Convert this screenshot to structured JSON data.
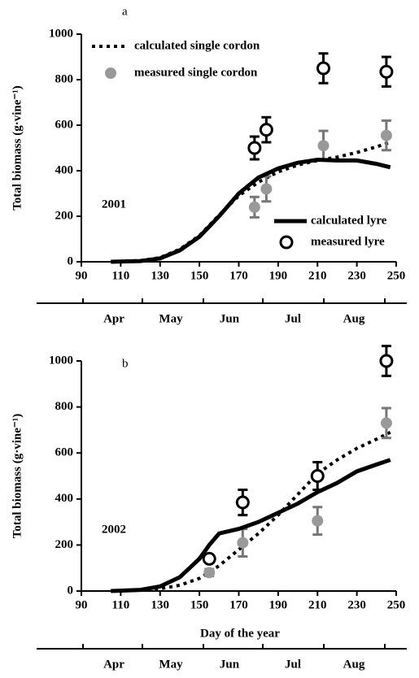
{
  "chart_data": [
    {
      "type": "line",
      "panel_label": "a",
      "year_label": "2001",
      "ylabel": "Total biomass (g·vine⁻¹)",
      "xlim": [
        90,
        250
      ],
      "xticks": [
        90,
        110,
        130,
        150,
        170,
        190,
        210,
        230,
        250
      ],
      "ylim": [
        0,
        1000
      ],
      "yticks": [
        0,
        200,
        400,
        600,
        800,
        1000
      ],
      "month_labels": [
        "Apr",
        "May",
        "Jun",
        "Jul",
        "Aug"
      ],
      "series": [
        {
          "name": "calculated single cordon",
          "style": "dotted",
          "color": "#000000",
          "x": [
            105,
            120,
            130,
            140,
            150,
            160,
            170,
            180,
            190,
            200,
            210,
            220,
            230,
            240,
            247
          ],
          "values": [
            0,
            5,
            18,
            55,
            115,
            205,
            290,
            350,
            395,
            425,
            445,
            460,
            480,
            505,
            525
          ]
        },
        {
          "name": "measured single cordon",
          "style": "filled",
          "color": "#999999",
          "x": [
            178,
            184,
            213,
            245
          ],
          "values": [
            240,
            320,
            510,
            555
          ],
          "errors": [
            45,
            55,
            65,
            65
          ]
        },
        {
          "name": "calculated lyre",
          "style": "solid",
          "color": "#000000",
          "x": [
            105,
            120,
            130,
            140,
            150,
            160,
            170,
            180,
            190,
            200,
            210,
            220,
            230,
            240,
            247
          ],
          "values": [
            0,
            3,
            15,
            50,
            110,
            200,
            300,
            370,
            410,
            435,
            448,
            445,
            445,
            430,
            415
          ]
        },
        {
          "name": "measured lyre",
          "style": "open",
          "color": "#000000",
          "x": [
            178,
            184,
            213,
            245
          ],
          "values": [
            500,
            580,
            850,
            835
          ],
          "errors": [
            50,
            55,
            65,
            65
          ]
        }
      ]
    },
    {
      "type": "line",
      "panel_label": "b",
      "year_label": "2002",
      "ylabel": "Total biomass (g·vine⁻¹)",
      "xlabel": "Day of the year",
      "xlim": [
        90,
        250
      ],
      "xticks": [
        90,
        110,
        130,
        150,
        170,
        190,
        210,
        230,
        250
      ],
      "ylim": [
        0,
        1000
      ],
      "yticks": [
        0,
        200,
        400,
        600,
        800,
        1000
      ],
      "month_labels": [
        "Apr",
        "May",
        "Jun",
        "Jul",
        "Aug"
      ],
      "series": [
        {
          "style": "dotted",
          "color": "#000000",
          "x": [
            105,
            120,
            130,
            140,
            150,
            160,
            170,
            180,
            190,
            200,
            210,
            220,
            230,
            240,
            247
          ],
          "values": [
            0,
            3,
            10,
            25,
            55,
            110,
            180,
            250,
            330,
            420,
            510,
            570,
            620,
            660,
            690
          ]
        },
        {
          "style": "filled",
          "color": "#999999",
          "x": [
            155,
            172,
            210,
            245
          ],
          "values": [
            80,
            210,
            305,
            730
          ],
          "errors": [
            15,
            60,
            60,
            65
          ]
        },
        {
          "style": "solid",
          "color": "#000000",
          "x": [
            105,
            120,
            130,
            140,
            150,
            155,
            160,
            170,
            180,
            190,
            200,
            210,
            220,
            230,
            240,
            247
          ],
          "values": [
            0,
            5,
            20,
            60,
            140,
            200,
            250,
            270,
            300,
            340,
            380,
            430,
            470,
            520,
            550,
            570
          ]
        },
        {
          "style": "open",
          "color": "#000000",
          "x": [
            155,
            172,
            210,
            245
          ],
          "values": [
            140,
            385,
            500,
            1000
          ],
          "errors": [
            15,
            55,
            60,
            65
          ]
        }
      ]
    }
  ]
}
